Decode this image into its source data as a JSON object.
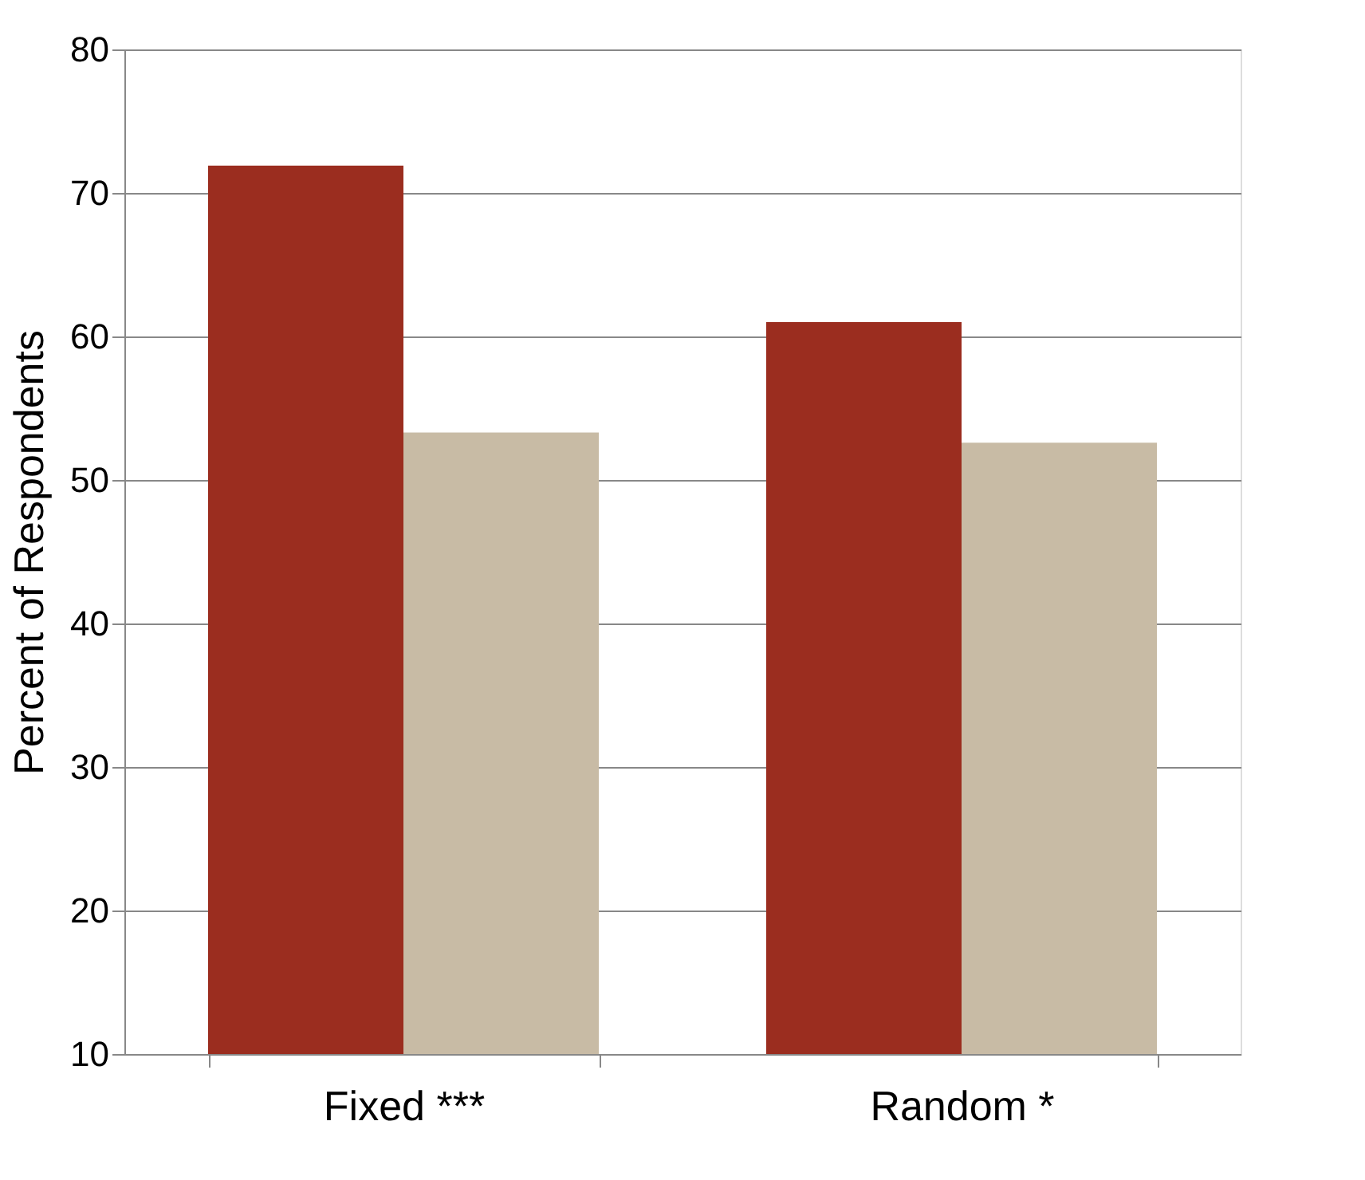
{
  "chart_data": {
    "type": "bar",
    "ylabel": "Percent of Respondents",
    "categories": [
      "Fixed ***",
      "Random *"
    ],
    "series": [
      {
        "color": "#9b2d1f",
        "values": [
          71.9,
          61.0
        ]
      },
      {
        "color": "#c8bba5",
        "values": [
          53.3,
          52.6
        ]
      }
    ],
    "ylim": [
      10,
      80
    ],
    "yticks": [
      10,
      20,
      30,
      40,
      50,
      60,
      70,
      80
    ],
    "grid": "y"
  }
}
